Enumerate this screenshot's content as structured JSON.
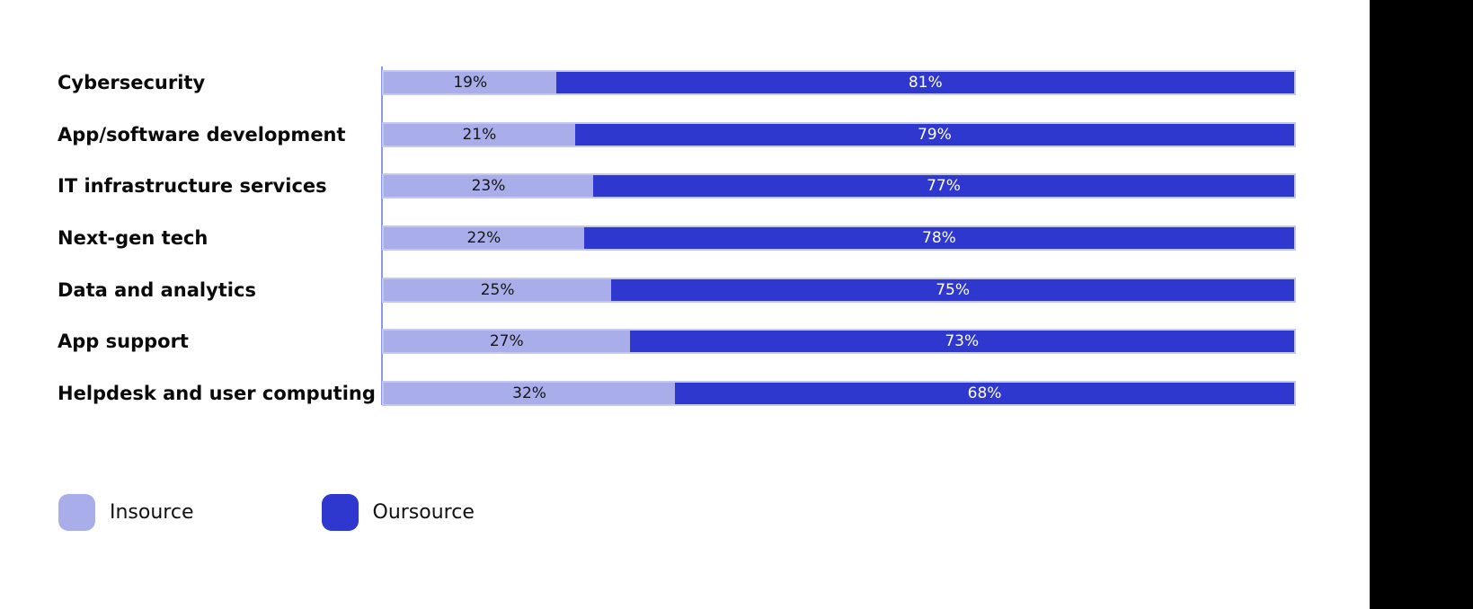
{
  "page": {
    "background": "#ffffff",
    "side_panel_color": "#000000",
    "axis_color": "#8d96e8",
    "bar_outline_color": "#c4c8f1"
  },
  "chart_data": {
    "type": "bar",
    "orientation": "horizontal",
    "stacked": true,
    "value_unit": "%",
    "title": "",
    "xlabel": "",
    "ylabel": "",
    "xlim": [
      0,
      100
    ],
    "grid": false,
    "categories": [
      "Cybersecurity",
      "App/software development",
      "IT infrastructure services",
      "Next-gen tech",
      "Data and analytics",
      "App support",
      "Helpdesk and user computing"
    ],
    "series": [
      {
        "name": "Insource",
        "color": "#a9aeea",
        "label_color": "#151515",
        "values": [
          19,
          21,
          23,
          22,
          25,
          27,
          32
        ],
        "labels": [
          "19%",
          "21%",
          "23%",
          "22%",
          "25%",
          "27%",
          "32%"
        ]
      },
      {
        "name": "Oursource",
        "color": "#2e38cf",
        "label_color": "#ffffff",
        "values": [
          81,
          79,
          77,
          78,
          75,
          73,
          68
        ],
        "labels": [
          "81%",
          "79%",
          "77%",
          "78%",
          "75%",
          "73%",
          "68%"
        ]
      }
    ],
    "legend": {
      "position": "bottom-left",
      "items": [
        {
          "label": "Insource",
          "color": "#a9aeea"
        },
        {
          "label": "Oursource",
          "color": "#2e38cf"
        }
      ]
    }
  }
}
